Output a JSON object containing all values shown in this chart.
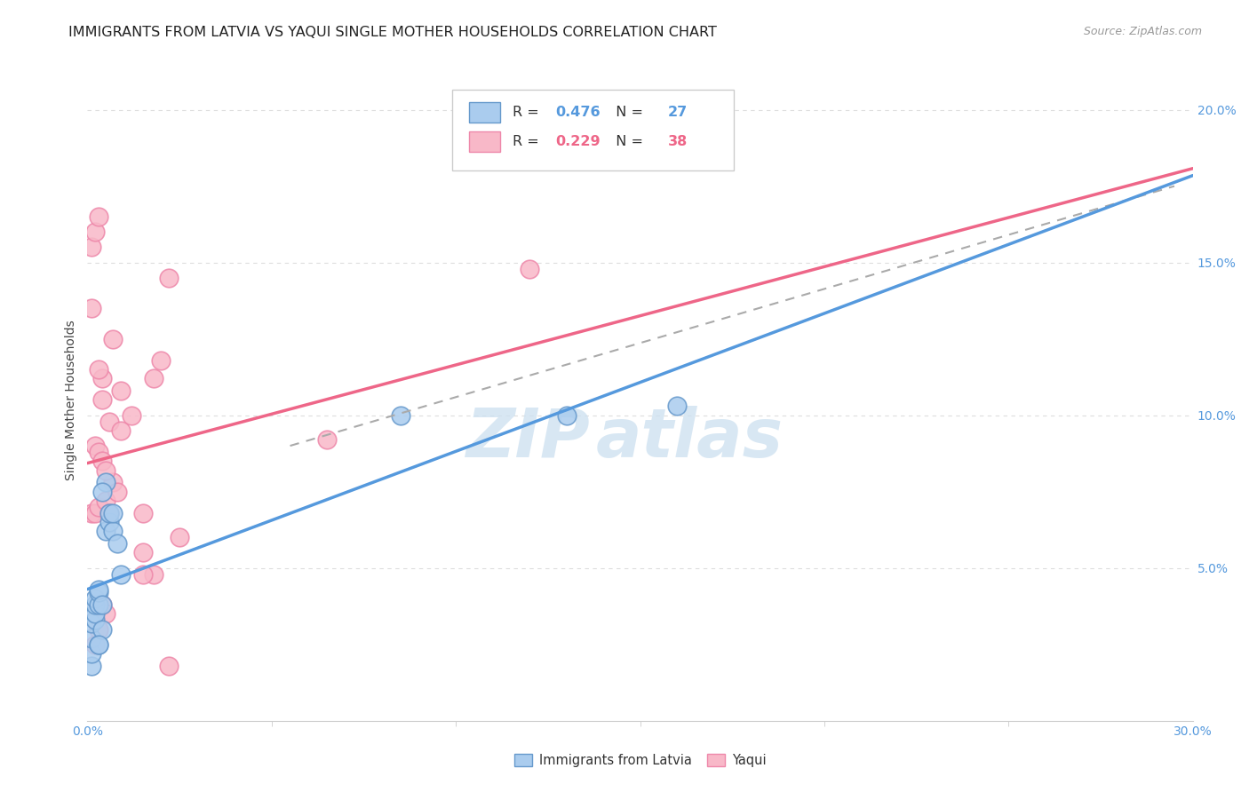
{
  "title": "IMMIGRANTS FROM LATVIA VS YAQUI SINGLE MOTHER HOUSEHOLDS CORRELATION CHART",
  "source": "Source: ZipAtlas.com",
  "ylabel_label": "Single Mother Households",
  "xlim": [
    0.0,
    0.3
  ],
  "ylim": [
    0.0,
    0.21
  ],
  "xticks": [
    0.0,
    0.3
  ],
  "yticks": [
    0.05,
    0.1,
    0.15,
    0.2
  ],
  "xtick_labels": [
    "0.0%",
    "30.0%"
  ],
  "ytick_labels": [
    "5.0%",
    "10.0%",
    "15.0%",
    "20.0%"
  ],
  "background_color": "#ffffff",
  "grid_color": "#dddddd",
  "latvia_color": "#aaccee",
  "yaqui_color": "#f8b8c8",
  "latvia_edge_color": "#6699cc",
  "yaqui_edge_color": "#ee88aa",
  "latvia_line_color": "#5599dd",
  "yaqui_line_color": "#ee6688",
  "tick_color": "#5599dd",
  "title_fontsize": 11.5,
  "axis_label_fontsize": 10,
  "tick_fontsize": 10,
  "legend_R_latvia": "0.476",
  "legend_N_latvia": "27",
  "legend_R_yaqui": "0.229",
  "legend_N_yaqui": "38",
  "latvia_x": [
    0.001,
    0.001,
    0.001,
    0.001,
    0.002,
    0.002,
    0.002,
    0.002,
    0.003,
    0.003,
    0.003,
    0.003,
    0.004,
    0.004,
    0.005,
    0.005,
    0.006,
    0.006,
    0.007,
    0.007,
    0.008,
    0.009,
    0.003,
    0.004,
    0.085,
    0.13,
    0.16
  ],
  "latvia_y": [
    0.018,
    0.022,
    0.027,
    0.032,
    0.033,
    0.035,
    0.038,
    0.04,
    0.025,
    0.038,
    0.042,
    0.043,
    0.03,
    0.038,
    0.062,
    0.078,
    0.065,
    0.068,
    0.062,
    0.068,
    0.058,
    0.048,
    0.025,
    0.075,
    0.1,
    0.1,
    0.103
  ],
  "yaqui_x": [
    0.001,
    0.001,
    0.001,
    0.002,
    0.002,
    0.002,
    0.002,
    0.003,
    0.003,
    0.003,
    0.003,
    0.004,
    0.004,
    0.004,
    0.005,
    0.005,
    0.006,
    0.006,
    0.007,
    0.008,
    0.009,
    0.012,
    0.015,
    0.015,
    0.018,
    0.018,
    0.02,
    0.022,
    0.022,
    0.025,
    0.065,
    0.12,
    0.003,
    0.004,
    0.005,
    0.007,
    0.009,
    0.015
  ],
  "yaqui_y": [
    0.068,
    0.135,
    0.155,
    0.025,
    0.068,
    0.09,
    0.16,
    0.03,
    0.07,
    0.088,
    0.165,
    0.038,
    0.085,
    0.112,
    0.035,
    0.072,
    0.068,
    0.098,
    0.078,
    0.075,
    0.095,
    0.1,
    0.055,
    0.068,
    0.048,
    0.112,
    0.118,
    0.018,
    0.145,
    0.06,
    0.092,
    0.148,
    0.115,
    0.105,
    0.082,
    0.125,
    0.108,
    0.048
  ],
  "legend_label_latvia": "Immigrants from Latvia",
  "legend_label_yaqui": "Yaqui"
}
